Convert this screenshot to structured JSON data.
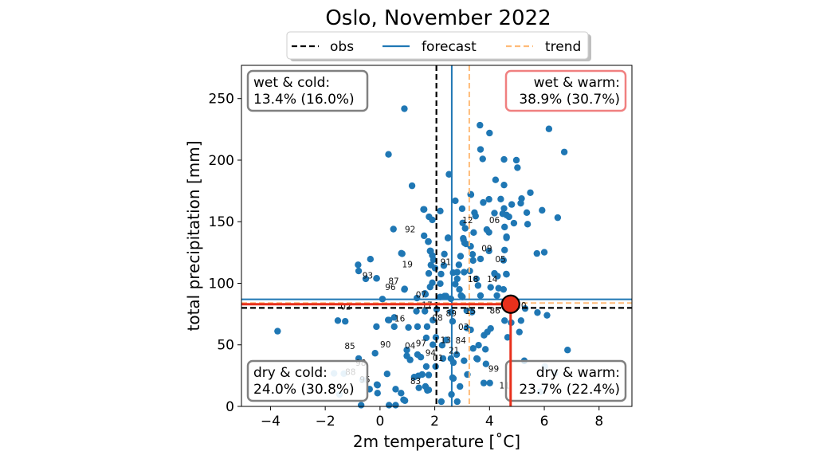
{
  "chart_data": {
    "type": "scatter",
    "title": "Oslo, November 2022",
    "xlabel": "2m temperature [˚C]",
    "ylabel": "total precipitation [mm]",
    "xlim": [
      -5.06,
      9.2
    ],
    "ylim": [
      0,
      277
    ],
    "xticks": [
      -4,
      -2,
      0,
      2,
      4,
      6,
      8
    ],
    "xtick_labels": [
      "−4",
      "−2",
      "0",
      "2",
      "4",
      "6",
      "8"
    ],
    "yticks": [
      0,
      50,
      100,
      150,
      200,
      250
    ],
    "ytick_labels": [
      "0",
      "50",
      "100",
      "150",
      "200",
      "250"
    ],
    "grid": false,
    "legend": {
      "placement": "top-center",
      "entries": [
        {
          "label": "obs",
          "style": "dashed",
          "color": "#000000"
        },
        {
          "label": "forecast",
          "style": "solid",
          "color": "#1f77b4"
        },
        {
          "label": "trend",
          "style": "dashed",
          "color": "#ffbb78"
        }
      ]
    },
    "reference_lines": {
      "obs": {
        "temperature": 2.06,
        "precipitation": 80,
        "color": "#000000"
      },
      "forecast": {
        "temperature": 2.62,
        "precipitation": 87,
        "color": "#1f77b4"
      },
      "trend": {
        "temperature": 3.26,
        "precipitation": 84,
        "color": "#ffbb78"
      }
    },
    "highlight": {
      "temperature": 4.77,
      "precipitation": 83,
      "color": "#e8301c"
    },
    "quadrants": [
      {
        "id": "wet-cold",
        "title": "wet & cold:",
        "value": "13.4% (16.0%)",
        "placement": "top-left",
        "border": "#808080"
      },
      {
        "id": "wet-warm",
        "title": "wet & warm:",
        "value": "38.9% (30.7%)",
        "placement": "top-right",
        "border": "#f08080"
      },
      {
        "id": "dry-cold",
        "title": "dry & cold:",
        "value": "24.0% (30.8%)",
        "placement": "bottom-left",
        "border": "#808080"
      },
      {
        "id": "dry-warm",
        "title": "dry & warm:",
        "value": "23.7% (22.4%)",
        "placement": "bottom-right",
        "border": "#808080"
      }
    ],
    "point_color": "#1f77b4",
    "faded_point_color": "#8ec1e3",
    "points": [
      [
        0.89,
        241.8
      ],
      [
        0.31,
        204.7
      ],
      [
        1.17,
        179.2
      ],
      [
        1.59,
        160
      ],
      [
        1.79,
        154
      ],
      [
        1.91,
        151.5
      ],
      [
        0.49,
        144
      ],
      [
        1.61,
        138.6
      ],
      [
        1.76,
        133.8
      ],
      [
        0.81,
        124
      ],
      [
        1.84,
        126
      ],
      [
        -0.35,
        119.6
      ],
      [
        -0.8,
        115
      ],
      [
        -0.78,
        110
      ],
      [
        -0.52,
        103.6
      ],
      [
        -0.12,
        104
      ],
      [
        0.89,
        95
      ],
      [
        0.09,
        87.2
      ],
      [
        3.65,
        228.4
      ],
      [
        4.0,
        222
      ],
      [
        6.17,
        225.4
      ],
      [
        3.67,
        208.7
      ],
      [
        6.73,
        206.6
      ],
      [
        3.75,
        201
      ],
      [
        4.53,
        200.6
      ],
      [
        4.98,
        200
      ],
      [
        5.02,
        193.9
      ],
      [
        2.52,
        188.5
      ],
      [
        4.22,
        184
      ],
      [
        4.53,
        179.8
      ],
      [
        5.49,
        173.6
      ],
      [
        3.32,
        172
      ],
      [
        2.75,
        167
      ],
      [
        3.98,
        168.2
      ],
      [
        3.77,
        165.6
      ],
      [
        4.41,
        168.4
      ],
      [
        5.17,
        168.8
      ],
      [
        5.14,
        165
      ],
      [
        4.81,
        164
      ],
      [
        4.53,
        160.8
      ],
      [
        5.92,
        159.3
      ],
      [
        3.0,
        160.6
      ],
      [
        2.2,
        158.7
      ],
      [
        1.61,
        160
      ],
      [
        3.45,
        157.4
      ],
      [
        4.18,
        157
      ],
      [
        4.48,
        156.5
      ],
      [
        4.62,
        155.4
      ],
      [
        5.36,
        157.4
      ],
      [
        3.49,
        154.6
      ],
      [
        4.71,
        154
      ],
      [
        6.49,
        153.3
      ],
      [
        3.02,
        149
      ],
      [
        4.89,
        148.8
      ],
      [
        5.39,
        148
      ],
      [
        4.55,
        145.7
      ],
      [
        3.11,
        144.6
      ],
      [
        3.9,
        143.6
      ],
      [
        3.98,
        141.4
      ],
      [
        3.42,
        141.2
      ],
      [
        4.62,
        137.8
      ],
      [
        3.04,
        136.5
      ],
      [
        2.49,
        137
      ],
      [
        1.77,
        133.9
      ],
      [
        2.48,
        136.7
      ],
      [
        3.05,
        135.4
      ],
      [
        3.14,
        132
      ],
      [
        4.62,
        136.9
      ],
      [
        0.78,
        124.4
      ],
      [
        1.83,
        126.3
      ],
      [
        1.91,
        122.6
      ],
      [
        1.95,
        119.2
      ],
      [
        2.35,
        123.7
      ],
      [
        2.94,
        122
      ],
      [
        3.38,
        123.5
      ],
      [
        3.67,
        119.8
      ],
      [
        3.98,
        126.3
      ],
      [
        4.55,
        127
      ],
      [
        1.86,
        114.8
      ],
      [
        2.01,
        112.3
      ],
      [
        2.33,
        114.4
      ],
      [
        2.88,
        115
      ],
      [
        2.67,
        108.6
      ],
      [
        2.82,
        109
      ],
      [
        3.07,
        109
      ],
      [
        3.28,
        110
      ],
      [
        -0.13,
        104
      ],
      [
        1.78,
        108
      ],
      [
        2.23,
        107.5
      ],
      [
        1.91,
        100.4
      ],
      [
        2.2,
        99.7
      ],
      [
        2.82,
        103.6
      ],
      [
        2.75,
        99.3
      ],
      [
        3.52,
        103.6
      ],
      [
        3.58,
        98.2
      ],
      [
        4.19,
        107.5
      ],
      [
        4.29,
        105.8
      ],
      [
        4.61,
        107.5
      ],
      [
        4.04,
        96.7
      ],
      [
        4.33,
        96
      ],
      [
        4.51,
        95
      ],
      [
        0.9,
        95.4
      ],
      [
        1.83,
        97
      ],
      [
        2.9,
        95
      ],
      [
        2.96,
        90
      ],
      [
        3.67,
        90
      ],
      [
        4.27,
        90
      ],
      [
        1.66,
        91.1
      ],
      [
        2.36,
        89.6
      ],
      [
        3.31,
        172.3
      ],
      [
        3.09,
        132.7
      ],
      [
        3.31,
        130
      ],
      [
        1.85,
        126.2
      ],
      [
        3.4,
        118.5
      ],
      [
        5.73,
        124.2
      ],
      [
        6.0,
        125.2
      ],
      [
        4.51,
        118.7
      ],
      [
        4.18,
        108
      ],
      [
        4.62,
        107.3
      ],
      [
        1.35,
        88
      ],
      [
        1.64,
        91.8
      ],
      [
        2.2,
        88.9
      ],
      [
        2.41,
        89.6
      ],
      [
        2.59,
        87.4
      ],
      [
        3.01,
        88.9
      ],
      [
        1.33,
        77.3
      ],
      [
        1.64,
        77.3
      ],
      [
        2.07,
        78.8
      ],
      [
        2.59,
        76.6
      ],
      [
        3.17,
        77.7
      ],
      [
        3.36,
        76.6
      ],
      [
        0.3,
        70.2
      ],
      [
        0.52,
        64.8
      ],
      [
        1.93,
        70.1
      ],
      [
        2.65,
        69.1
      ],
      [
        3.17,
        63.7
      ],
      [
        2.41,
        53.9
      ],
      [
        -1.54,
        69.7
      ],
      [
        -1.27,
        69.1
      ],
      [
        0.33,
        70.1
      ],
      [
        0.52,
        72.3
      ],
      [
        -0.13,
        64.8
      ],
      [
        1.04,
        64.1
      ],
      [
        1.37,
        64.8
      ],
      [
        1.72,
        64.8
      ],
      [
        2.04,
        56.1
      ],
      [
        1.69,
        55.7
      ],
      [
        1.93,
        50.1
      ],
      [
        2.27,
        49.7
      ],
      [
        2.8,
        42.1
      ],
      [
        -0.78,
        38.9
      ],
      [
        -0.18,
        43.2
      ],
      [
        0.98,
        45.8
      ],
      [
        0.98,
        41
      ],
      [
        1.1,
        37.8
      ],
      [
        1.37,
        42.1
      ],
      [
        1.49,
        40
      ],
      [
        1.69,
        32.4
      ],
      [
        2.03,
        32.4
      ],
      [
        2.3,
        38.9
      ],
      [
        2.59,
        38.9
      ],
      [
        2.68,
        35.6
      ],
      [
        3.07,
        37.1
      ],
      [
        3.53,
        38.9
      ],
      [
        0.26,
        26.4
      ],
      [
        1.4,
        24.8
      ],
      [
        1.54,
        25.9
      ],
      [
        1.78,
        25.5
      ],
      [
        1.66,
        16.2
      ],
      [
        1.73,
        13
      ],
      [
        2.68,
        22.7
      ],
      [
        3.19,
        25.9
      ],
      [
        -0.11,
        17.7
      ],
      [
        0.57,
        14
      ],
      [
        1.25,
        23.8
      ],
      [
        -0.38,
        14
      ],
      [
        0.86,
        5.4
      ],
      [
        2.61,
        9.7
      ],
      [
        5.3,
        79.5
      ],
      [
        5.75,
        76.2
      ],
      [
        6.1,
        74
      ],
      [
        4.55,
        69.7
      ],
      [
        4.79,
        68
      ],
      [
        5.15,
        69.7
      ],
      [
        4.04,
        63.3
      ],
      [
        3.92,
        60.4
      ],
      [
        3.8,
        57.8
      ],
      [
        5.09,
        60.4
      ],
      [
        4.66,
        56.1
      ],
      [
        3.31,
        62.2
      ],
      [
        3.6,
        49.7
      ],
      [
        3.4,
        47.1
      ],
      [
        3.85,
        46.4
      ],
      [
        6.85,
        45.8
      ],
      [
        3.56,
        38.4
      ],
      [
        3.87,
        34.5
      ],
      [
        5.27,
        37.1
      ],
      [
        3.79,
        19
      ],
      [
        4.01,
        19
      ],
      [
        -3.74,
        61.1
      ],
      [
        -0.09,
        17.3
      ],
      [
        -0.09,
        10.8
      ],
      [
        0.77,
        10.8
      ],
      [
        0.91,
        4.7
      ],
      [
        1.42,
        15.1
      ],
      [
        1.78,
        13.4
      ],
      [
        2.24,
        3.9
      ],
      [
        2.65,
        23.3
      ],
      [
        2.92,
        16.2
      ],
      [
        2.82,
        3.9
      ],
      [
        0.33,
        1
      ],
      [
        -0.69,
        1
      ],
      [
        0.57,
        1
      ]
    ],
    "faded_points": [
      [
        -1.68,
        26.8
      ],
      [
        -1.32,
        26.6
      ],
      [
        -0.64,
        21.6
      ],
      [
        -1.48,
        9.7
      ],
      [
        6.02,
        32.4
      ],
      [
        6.39,
        27
      ],
      [
        5.85,
        11.9
      ]
    ],
    "year_labels": [
      {
        "text": "92",
        "x": 1.1,
        "y": 141.5
      },
      {
        "text": "19",
        "x": 1.0,
        "y": 113
      },
      {
        "text": "93",
        "x": -0.45,
        "y": 104
      },
      {
        "text": "87",
        "x": 0.5,
        "y": 99.5
      },
      {
        "text": "96",
        "x": 0.38,
        "y": 94.5
      },
      {
        "text": "07",
        "x": 1.5,
        "y": 88.5
      },
      {
        "text": "02",
        "x": -1.25,
        "y": 78.5
      },
      {
        "text": "17",
        "x": 1.72,
        "y": 80
      },
      {
        "text": "91",
        "x": 2.4,
        "y": 115
      },
      {
        "text": "12",
        "x": 3.2,
        "y": 149
      },
      {
        "text": "06",
        "x": 4.18,
        "y": 149
      },
      {
        "text": "09",
        "x": 3.9,
        "y": 126
      },
      {
        "text": "05",
        "x": 4.4,
        "y": 117
      },
      {
        "text": "18",
        "x": 3.4,
        "y": 101
      },
      {
        "text": "14",
        "x": 4.1,
        "y": 101
      },
      {
        "text": "89",
        "x": 2.6,
        "y": 73
      },
      {
        "text": "15",
        "x": 3.3,
        "y": 75
      },
      {
        "text": "08",
        "x": 2.1,
        "y": 69.5
      },
      {
        "text": "86",
        "x": 4.2,
        "y": 75.5
      },
      {
        "text": "20",
        "x": 5.15,
        "y": 79.5
      },
      {
        "text": "16",
        "x": 0.72,
        "y": 69
      },
      {
        "text": "03",
        "x": 3.05,
        "y": 62
      },
      {
        "text": "13",
        "x": 2.4,
        "y": 51.5
      },
      {
        "text": "84",
        "x": 2.95,
        "y": 51
      },
      {
        "text": "85",
        "x": -1.1,
        "y": 46.5
      },
      {
        "text": "90",
        "x": 0.2,
        "y": 48
      },
      {
        "text": "04",
        "x": 1.1,
        "y": 47
      },
      {
        "text": "97",
        "x": 1.5,
        "y": 49
      },
      {
        "text": "21",
        "x": 2.7,
        "y": 43
      },
      {
        "text": "94",
        "x": 1.85,
        "y": 41
      },
      {
        "text": "01",
        "x": 2.12,
        "y": 37
      },
      {
        "text": "98",
        "x": -0.7,
        "y": 33
      },
      {
        "text": "88",
        "x": -1.08,
        "y": 25.5
      },
      {
        "text": "95",
        "x": -0.55,
        "y": 19.5
      },
      {
        "text": "83",
        "x": 1.3,
        "y": 18
      },
      {
        "text": "99",
        "x": 4.15,
        "y": 28
      },
      {
        "text": "11",
        "x": 4.55,
        "y": 14.5
      }
    ]
  }
}
